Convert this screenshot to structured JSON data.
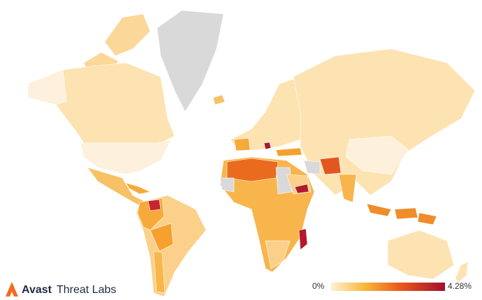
{
  "brand": {
    "name": "Avast",
    "product": "Threat Labs"
  },
  "legend": {
    "min": {
      "value": 0,
      "label": "0%"
    },
    "max": {
      "value": 4.28,
      "label": "4.28%"
    }
  }
}
